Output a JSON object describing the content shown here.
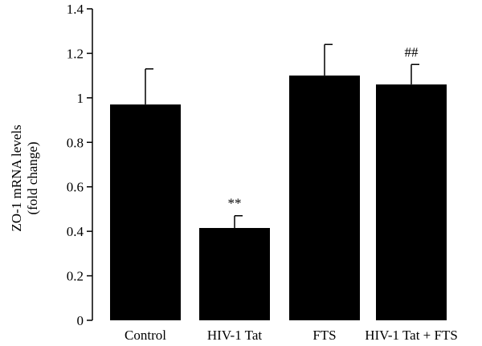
{
  "chart_data": {
    "type": "bar",
    "ylabel_line1": "ZO-1 mRNA levels",
    "ylabel_line2": "(fold change)",
    "ylim": [
      0,
      1.4
    ],
    "yticks": [
      "0",
      "0.2",
      "0.4",
      "0.6",
      "0.8",
      "1",
      "1.2",
      "1.4"
    ],
    "yticks_values": [
      0,
      0.2,
      0.4,
      0.6,
      0.8,
      1.0,
      1.2,
      1.4
    ],
    "categories": [
      "Control",
      "HIV-1 Tat",
      "FTS",
      "HIV-1 Tat + FTS"
    ],
    "values": [
      0.97,
      0.415,
      1.1,
      1.06
    ],
    "errors": [
      0.16,
      0.055,
      0.14,
      0.09
    ],
    "annotations": [
      "",
      "**",
      "",
      "##"
    ],
    "bar_color": "#000000",
    "grid": false
  }
}
